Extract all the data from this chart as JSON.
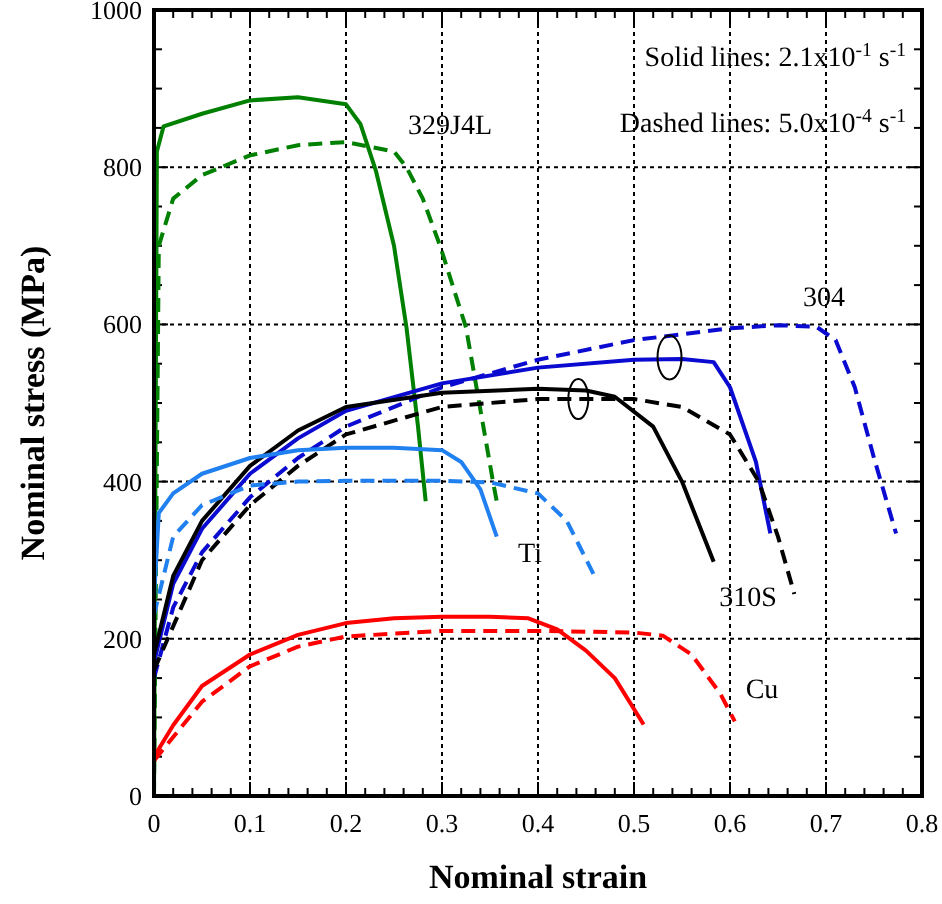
{
  "chart_data": {
    "type": "line",
    "xlabel": "Nominal strain",
    "ylabel": "Nominal stress (MPa)",
    "xlim": [
      0,
      0.8
    ],
    "ylim": [
      0,
      1000
    ],
    "xticks": [
      0,
      0.1,
      0.2,
      0.3,
      0.4,
      0.5,
      0.6,
      0.7,
      0.8
    ],
    "yticks": [
      0,
      200,
      400,
      600,
      800,
      1000
    ],
    "grid": true,
    "series": [
      {
        "color": "#008000",
        "line_style": "solid",
        "x": [
          0,
          0.003,
          0.01,
          0.05,
          0.1,
          0.15,
          0.2,
          0.215,
          0.231,
          0.25,
          0.263,
          0.275,
          0.283
        ],
        "values": [
          0,
          820,
          852,
          868,
          885,
          889,
          880,
          855,
          796,
          700,
          596,
          470,
          375
        ]
      },
      {
        "color": "#008000",
        "line_style": "dashed",
        "x": [
          0,
          0.005,
          0.02,
          0.05,
          0.1,
          0.15,
          0.2,
          0.25,
          0.263,
          0.28,
          0.298,
          0.325,
          0.354,
          0.357
        ],
        "values": [
          0,
          700,
          760,
          790,
          815,
          828,
          832,
          820,
          800,
          760,
          700,
          596,
          394,
          375
        ]
      },
      {
        "color": "#0a0ad0",
        "line_style": "solid",
        "x": [
          0,
          0.02,
          0.05,
          0.1,
          0.15,
          0.2,
          0.3,
          0.4,
          0.5,
          0.55,
          0.583,
          0.6,
          0.627,
          0.642
        ],
        "values": [
          170,
          270,
          340,
          410,
          455,
          490,
          525,
          545,
          555,
          556,
          552,
          520,
          425,
          334
        ]
      },
      {
        "color": "#0a0ad0",
        "line_style": "dashed",
        "x": [
          0,
          0.02,
          0.05,
          0.1,
          0.15,
          0.2,
          0.3,
          0.4,
          0.5,
          0.6,
          0.65,
          0.69,
          0.71,
          0.73,
          0.75,
          0.773
        ],
        "values": [
          150,
          240,
          310,
          380,
          430,
          470,
          520,
          555,
          580,
          595,
          599,
          597,
          580,
          520,
          430,
          334
        ]
      },
      {
        "color": "#000000",
        "line_style": "solid",
        "x": [
          0,
          0.02,
          0.05,
          0.1,
          0.15,
          0.2,
          0.3,
          0.4,
          0.45,
          0.48,
          0.52,
          0.55,
          0.583
        ],
        "values": [
          180,
          280,
          350,
          420,
          465,
          495,
          513,
          518,
          516,
          508,
          470,
          400,
          298
        ]
      },
      {
        "color": "#000000",
        "line_style": "dashed",
        "x": [
          0,
          0.05,
          0.1,
          0.15,
          0.2,
          0.3,
          0.4,
          0.5,
          0.55,
          0.6,
          0.63,
          0.65,
          0.667
        ],
        "values": [
          160,
          300,
          370,
          420,
          460,
          495,
          505,
          505,
          495,
          460,
          400,
          330,
          257
        ]
      },
      {
        "color": "#2080f0",
        "line_style": "solid",
        "x": [
          0,
          0.005,
          0.02,
          0.05,
          0.1,
          0.15,
          0.2,
          0.25,
          0.3,
          0.32,
          0.34,
          0.357
        ],
        "values": [
          250,
          360,
          385,
          410,
          430,
          440,
          443,
          443,
          440,
          425,
          390,
          330
        ]
      },
      {
        "color": "#2080f0",
        "line_style": "dashed",
        "x": [
          0,
          0.02,
          0.05,
          0.1,
          0.15,
          0.2,
          0.3,
          0.35,
          0.4,
          0.43,
          0.46
        ],
        "values": [
          230,
          330,
          370,
          395,
          400,
          401,
          401,
          399,
          385,
          350,
          277
        ]
      },
      {
        "color": "#ff0000",
        "line_style": "solid",
        "x": [
          0,
          0.02,
          0.05,
          0.1,
          0.15,
          0.2,
          0.25,
          0.3,
          0.35,
          0.39,
          0.42,
          0.45,
          0.48,
          0.51
        ],
        "values": [
          50,
          90,
          140,
          180,
          205,
          220,
          226,
          228,
          228,
          226,
          212,
          185,
          150,
          91
        ]
      },
      {
        "color": "#ff0000",
        "line_style": "dashed",
        "x": [
          0,
          0.02,
          0.05,
          0.1,
          0.15,
          0.2,
          0.3,
          0.4,
          0.5,
          0.53,
          0.56,
          0.59,
          0.605
        ],
        "values": [
          45,
          75,
          120,
          165,
          190,
          203,
          210,
          210,
          208,
          204,
          180,
          130,
          95
        ]
      }
    ],
    "annotations": [
      "329J4L",
      "304",
      "310S",
      "Ti",
      "Cu",
      "Solid lines: 2.1x10$^{-1}$ s$^{-1}$",
      "Dashed lines: 5.0x10$^{-4}$ s$^{-1}$"
    ]
  }
}
